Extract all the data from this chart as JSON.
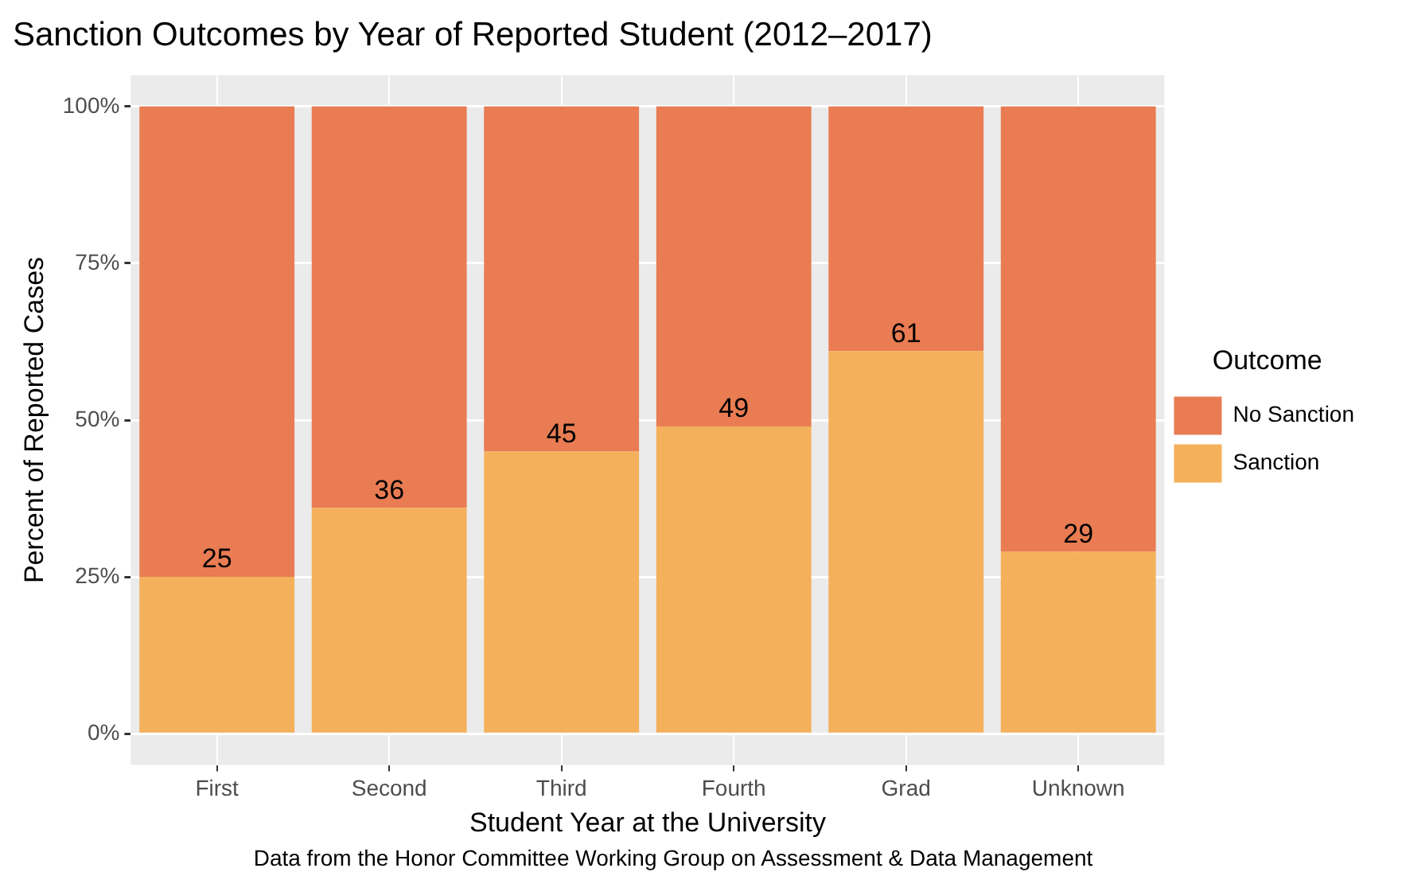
{
  "chart_data": {
    "type": "bar",
    "title": "Sanction Outcomes by Year of Reported Student (2012–2017)",
    "xlabel": "Student Year at the University",
    "ylabel": "Percent of Reported Cases",
    "legend_title": "Outcome",
    "categories": [
      "First",
      "Second",
      "Third",
      "Fourth",
      "Grad",
      "Unknown"
    ],
    "stacked": true,
    "series": [
      {
        "name": "Sanction",
        "color": "#f5b05c",
        "values": [
          25,
          36,
          45,
          49,
          61,
          29
        ],
        "value_labels": [
          "25",
          "36",
          "45",
          "49",
          "61",
          "29"
        ]
      },
      {
        "name": "No Sanction",
        "color": "#e97c52",
        "values": [
          75,
          64,
          55,
          51,
          39,
          71
        ]
      }
    ],
    "ylim": [
      -5,
      105
    ],
    "yticks": [
      {
        "value": 0,
        "label": "0%"
      },
      {
        "value": 25,
        "label": "25%"
      },
      {
        "value": 50,
        "label": "50%"
      },
      {
        "value": 75,
        "label": "75%"
      },
      {
        "value": 100,
        "label": "100%"
      }
    ],
    "grid": true,
    "legend": "right",
    "annotations": [
      "Data from the Honor Committee Working Group on Assessment & Data Management"
    ]
  }
}
